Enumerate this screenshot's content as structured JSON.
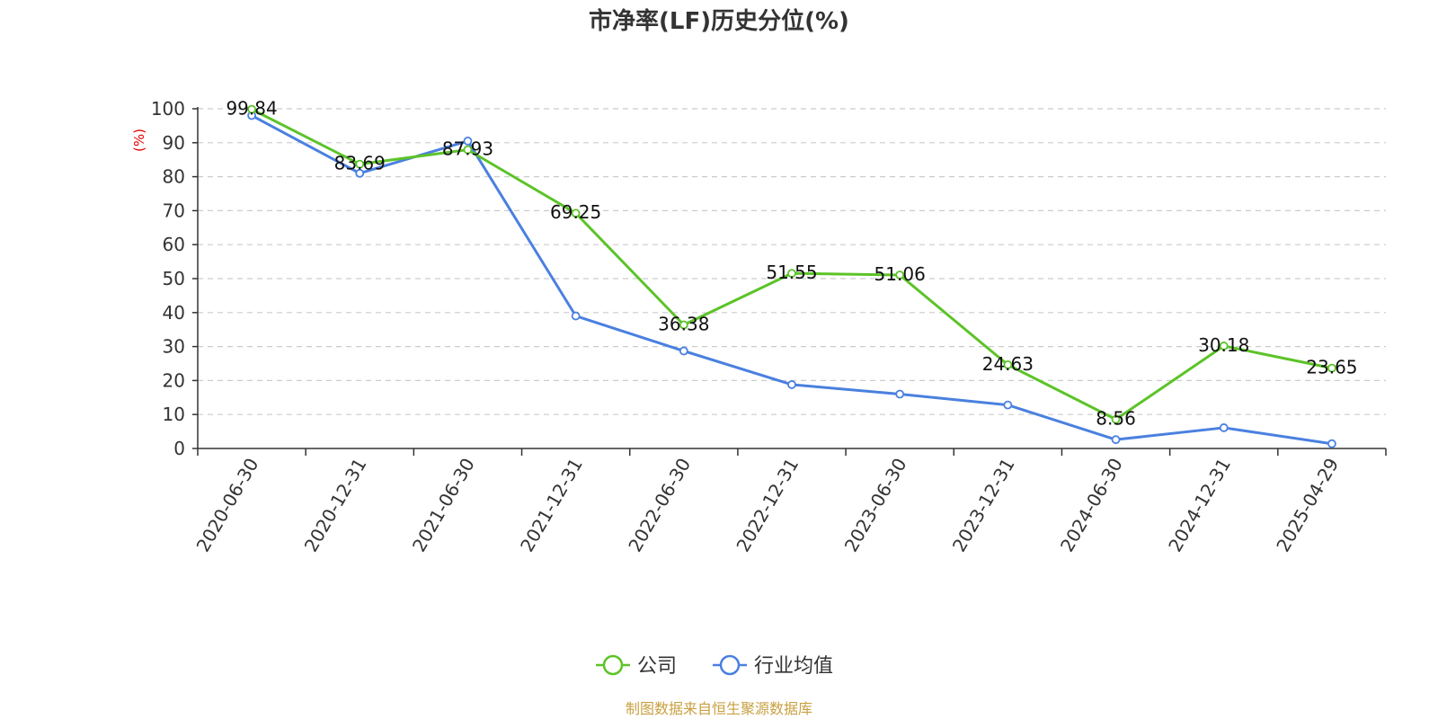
{
  "chart_data": {
    "type": "line",
    "title": "市净率(LF)历史分位(%)",
    "ylabel": "(%)",
    "xlabel": "",
    "ylim": [
      0,
      100
    ],
    "yticks": [
      0,
      10,
      20,
      30,
      40,
      50,
      60,
      70,
      80,
      90,
      100
    ],
    "grid": true,
    "legend_position": "bottom-center",
    "categories": [
      "2020-06-30",
      "2020-12-31",
      "2021-06-30",
      "2021-12-31",
      "2022-06-30",
      "2022-12-31",
      "2023-06-30",
      "2023-12-31",
      "2024-06-30",
      "2024-12-31",
      "2025-04-29"
    ],
    "series": [
      {
        "name": "公司",
        "color": "#5cc328",
        "values": [
          99.84,
          83.69,
          87.93,
          69.25,
          36.38,
          51.55,
          51.06,
          24.63,
          8.56,
          30.18,
          23.65
        ],
        "labels": [
          "99.84",
          "83.69",
          "87.93",
          "69.25",
          "36.38",
          "51.55",
          "51.06",
          "24.63",
          "8.56",
          "30.18",
          "23.65"
        ]
      },
      {
        "name": "行业均值",
        "color": "#4a80e0",
        "values": [
          98.0,
          81.0,
          90.5,
          39.0,
          28.7,
          18.8,
          16.0,
          12.8,
          2.6,
          6.1,
          1.4
        ]
      }
    ],
    "source": "制图数据来自恒生聚源数据库"
  }
}
